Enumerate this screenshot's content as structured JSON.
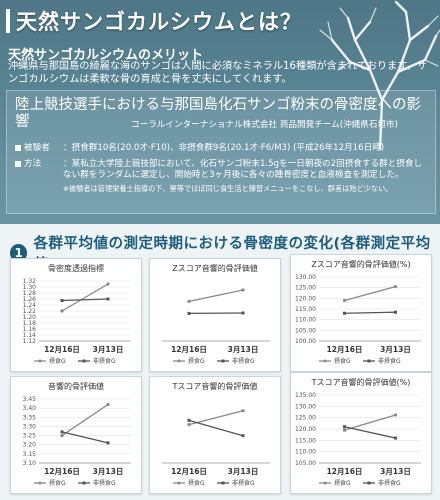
{
  "header": {
    "title": "天然サンゴカルシウムとは？"
  },
  "merit": {
    "heading": "天然サンゴカルシウムのメリット",
    "text": "沖縄県与那国島の綺麗な海のサンゴは人間に必須なミネラル16種類が含まれております。サンゴカルシウムは柔軟な骨の育成と骨を丈夫にしてくれます。"
  },
  "study": {
    "title": "陸上競技選手における与那国島化石サンゴ粉末の骨密度への影響",
    "org": "コーラルインターナショナル株式会社 商品開発チーム(沖縄県石垣市)",
    "rows": [
      {
        "label": "被験者",
        "text": "：摂食群10名(20.0才·F10)、非摂食群9名(20.1才·F6/M3) (平成26年12月16日時)"
      },
      {
        "label": "方法",
        "text": "：某私立大学陸上競技部において、化石サンゴ粉末1.5gを一日朝夜の2回摂食する群と摂食しない群をランダムに選定し、開始時と3ヶ月後に各々の踵骨密度と血液検査を測定した。"
      },
      {
        "label": "",
        "text": "※被験者は管理栄養士指導の下、寮等でほぼ同じ食生活と練習メニューをこなし、群差は殆ど少ない。"
      }
    ]
  },
  "section": {
    "number": "1",
    "title": "各群平均値の測定時期における骨密度の変化(各群測定平均値)"
  },
  "chart_data": [
    {
      "type": "line",
      "title": "骨密度透過指標",
      "categories": [
        "12月16日",
        "3月13日"
      ],
      "ylim": [
        1.12,
        1.32
      ],
      "yticks": [
        "1.12",
        "1.14",
        "1.16",
        "1.18",
        "1.20",
        "1.22",
        "1.24",
        "1.26",
        "1.28",
        "1.30",
        "1.32"
      ],
      "series": [
        {
          "name": "摂食G",
          "values": [
            1.22,
            1.31
          ]
        },
        {
          "name": "非摂食G",
          "values": [
            1.255,
            1.26
          ]
        }
      ]
    },
    {
      "type": "line",
      "title": "Zスコア音響的骨評価値",
      "categories": [
        "12月16日",
        "3月13日"
      ],
      "ylim": [
        0,
        3
      ],
      "yticks": [],
      "series": [
        {
          "name": "摂食G",
          "values": [
            1.98,
            2.55
          ]
        },
        {
          "name": "非摂食G",
          "values": [
            1.38,
            1.4
          ]
        }
      ]
    },
    {
      "type": "line",
      "title": "Zスコア音響的骨評価値(%)",
      "categories": [
        "12月16日",
        "3月13日"
      ],
      "ylim": [
        100,
        130
      ],
      "yticks": [
        "100.00",
        "105.00",
        "110.00",
        "115.00",
        "120.00",
        "125.00",
        "130.00"
      ],
      "series": [
        {
          "name": "摂食G",
          "values": [
            119,
            125.5
          ]
        },
        {
          "name": "非摂食G",
          "values": [
            113,
            113.5
          ]
        }
      ]
    },
    {
      "type": "line",
      "title": "音響的骨評価値",
      "categories": [
        "12月16日",
        "3月13日"
      ],
      "ylim": [
        3.1,
        3.45
      ],
      "yticks": [
        "3.10",
        "3.15",
        "3.20",
        "3.25",
        "3.30",
        "3.35",
        "3.40",
        "3.45"
      ],
      "series": [
        {
          "name": "摂食G",
          "values": [
            3.25,
            3.42
          ]
        },
        {
          "name": "非摂食G",
          "values": [
            3.27,
            3.21
          ]
        }
      ]
    },
    {
      "type": "line",
      "title": "Tスコア音響的骨評価値",
      "categories": [
        "12月16日",
        "3月13日"
      ],
      "ylim": [
        0,
        3
      ],
      "yticks": [],
      "series": [
        {
          "name": "摂食G",
          "values": [
            1.8,
            2.45
          ]
        },
        {
          "name": "非摂食G",
          "values": [
            2.0,
            1.28
          ]
        }
      ]
    },
    {
      "type": "line",
      "title": "Tスコア音響的骨評価値(%)",
      "categories": [
        "12月16日",
        "3月13日"
      ],
      "ylim": [
        105,
        135
      ],
      "yticks": [
        "105.00",
        "110.00",
        "115.00",
        "120.00",
        "125.00",
        "130.00",
        "135.00"
      ],
      "series": [
        {
          "name": "摂食G",
          "values": [
            119.5,
            126.2
          ]
        },
        {
          "name": "非摂食G",
          "values": [
            121,
            116
          ]
        }
      ]
    }
  ],
  "colors": {
    "series1": "#888888",
    "series2": "#555555",
    "accent": "#1c5d7d"
  }
}
